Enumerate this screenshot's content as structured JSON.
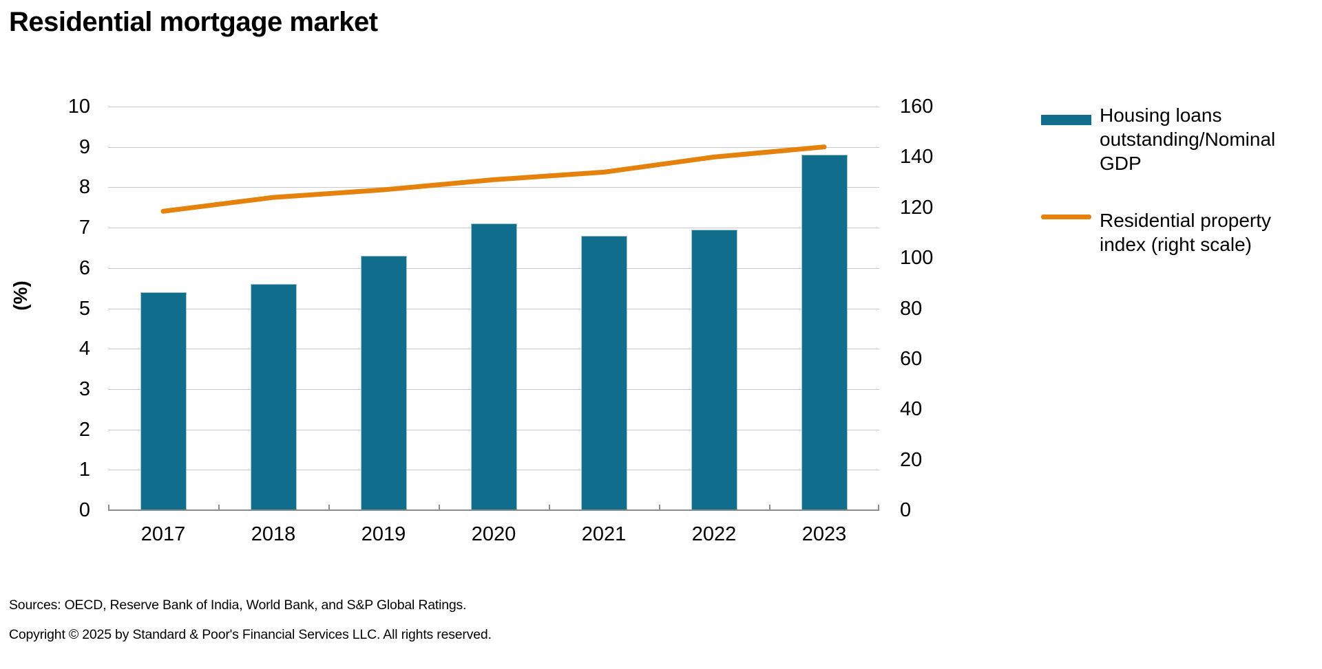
{
  "title": "Residential mortgage market",
  "axes": {
    "left_label": "(%)",
    "left_ticks": [
      "10",
      "9",
      "8",
      "7",
      "6",
      "5",
      "4",
      "3",
      "2",
      "1",
      "0"
    ],
    "right_ticks": [
      "160",
      "140",
      "120",
      "100",
      "80",
      "60",
      "40",
      "20",
      "0"
    ]
  },
  "legend": {
    "items": [
      {
        "label": "Housing loans outstanding/Nominal GDP",
        "swatch": "bar-swatch",
        "color": "#116E8C"
      },
      {
        "label": "Residential property index (right scale)",
        "swatch": "line-swatch",
        "color": "#E5820C"
      }
    ]
  },
  "footer": {
    "sources": "Sources: OECD, Reserve Bank of India, World Bank, and S&P Global Ratings.",
    "copyright": "Copyright © 2025 by Standard & Poor's Financial Services LLC. All rights reserved."
  },
  "colors": {
    "bar": "#116E8C",
    "bar_edge": "#9FC6D4",
    "line": "#E5820C",
    "grid": "#C9C9C9",
    "axis": "#8C8C8C",
    "text": "#000000"
  },
  "chart_data": {
    "type": "bar",
    "categories": [
      "2017",
      "2018",
      "2019",
      "2020",
      "2021",
      "2022",
      "2023"
    ],
    "series": [
      {
        "name": "Housing loans outstanding/Nominal GDP",
        "type": "bar",
        "axis": "left",
        "values": [
          5.4,
          5.6,
          6.3,
          7.1,
          6.8,
          6.95,
          8.8
        ]
      },
      {
        "name": "Residential property index (right scale)",
        "type": "line",
        "axis": "right",
        "values": [
          118.5,
          124,
          127,
          131,
          134,
          140,
          144
        ]
      }
    ],
    "title": "Residential mortgage market",
    "xlabel": "",
    "ylabel": "(%)",
    "left_axis": {
      "min": 0,
      "max": 10,
      "tick_step": 1
    },
    "right_axis": {
      "min": 0,
      "max": 160,
      "tick_step": 20
    },
    "grid": "horizontal",
    "legend_position": "right"
  }
}
